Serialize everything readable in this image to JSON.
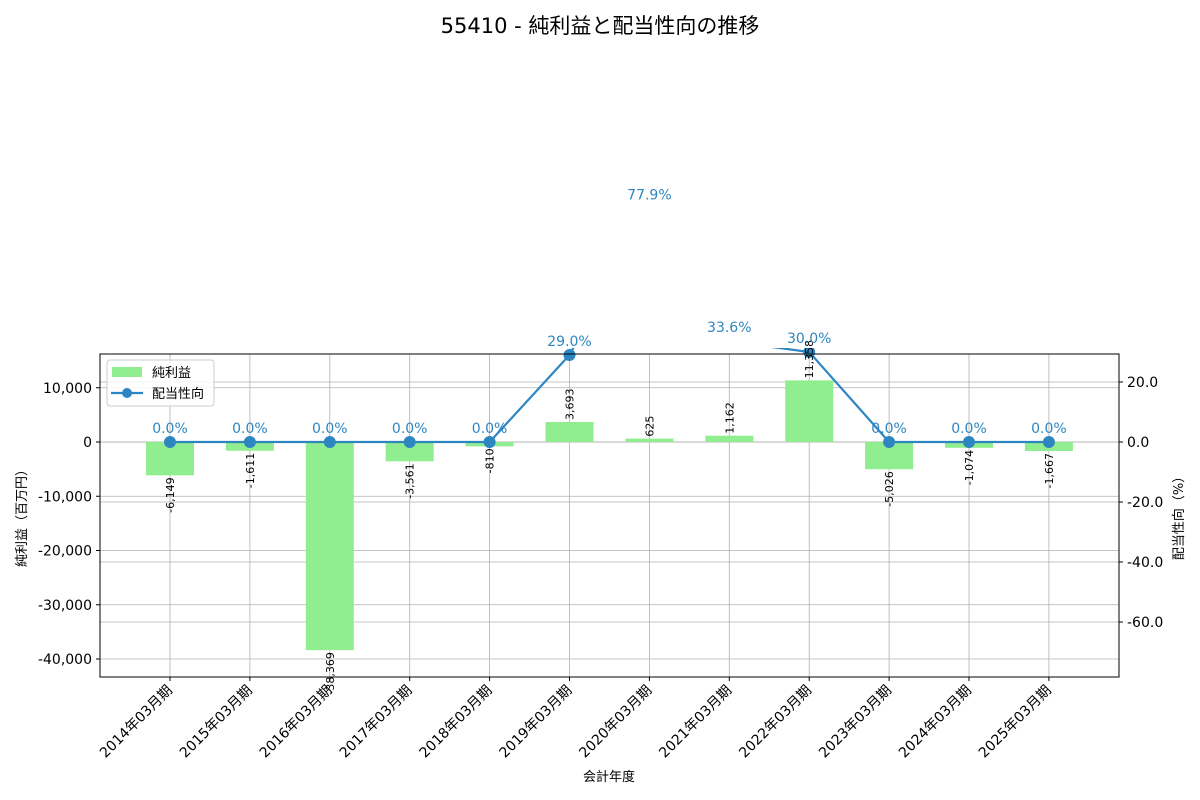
{
  "chart_data": {
    "type": "bar+line",
    "title": "55410 - 純利益と配当性向の推移",
    "xlabel": "会計年度",
    "ylabel_left": "純利益（百万円）",
    "ylabel_right": "配当性向（%）",
    "categories": [
      "2014年03月期",
      "2015年03月期",
      "2016年03月期",
      "2017年03月期",
      "2018年03月期",
      "2019年03月期",
      "2020年03月期",
      "2021年03月期",
      "2022年03月期",
      "2023年03月期",
      "2024年03月期",
      "2025年03月期"
    ],
    "series": [
      {
        "name": "純利益",
        "type": "bar",
        "axis": "left",
        "color": "#90ee90",
        "values": [
          -6149,
          -1611,
          -38369,
          -3561,
          -810,
          3693,
          625,
          1162,
          11358,
          -5026,
          -1074,
          -1667
        ],
        "labels": [
          "-6,149",
          "-1,611",
          "-38,369",
          "-3,561",
          "-810",
          "3,693",
          "625",
          "1,162",
          "11,358",
          "-5,026",
          "-1,074",
          "-1,667"
        ]
      },
      {
        "name": "配当性向",
        "type": "line",
        "axis": "right",
        "color": "#2e86c1",
        "values": [
          0.0,
          0.0,
          0.0,
          0.0,
          0.0,
          29.0,
          77.9,
          33.6,
          30.0,
          0.0,
          0.0,
          0.0
        ],
        "labels": [
          "0.0%",
          "0.0%",
          "0.0%",
          "0.0%",
          "0.0%",
          "29.0%",
          "77.9%",
          "33.6%",
          "30.0%",
          "0.0%",
          "0.0%",
          "0.0%"
        ]
      }
    ],
    "left_axis": {
      "ticks": [
        10000,
        0,
        -10000,
        -20000,
        -30000,
        -40000
      ],
      "tick_labels": [
        "10,000",
        "0",
        "-10,000",
        "-20,000",
        "-30,000",
        "-40,000"
      ],
      "ylim": [
        -43000,
        16300
      ]
    },
    "right_axis": {
      "ticks": [
        20.0,
        0.0,
        -20.0,
        -40.0,
        -60.0
      ],
      "tick_labels": [
        "20.0",
        "0.0",
        "-20.0",
        "-40.0",
        "-60.0"
      ],
      "ylim": [
        -78.3,
        29.3
      ]
    },
    "grid": true,
    "legend": {
      "position": "upper left",
      "entries": [
        "純利益",
        "配当性向"
      ]
    }
  }
}
